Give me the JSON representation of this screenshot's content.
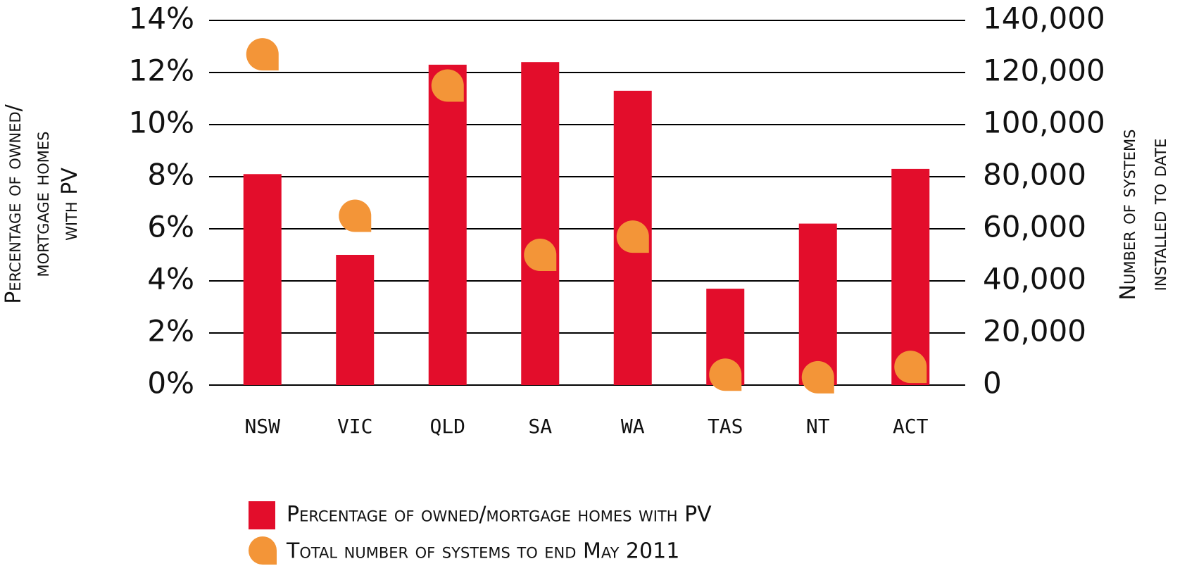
{
  "chart_data": {
    "type": "bar",
    "categories": [
      "NSW",
      "VIC",
      "QLD",
      "SA",
      "WA",
      "TAS",
      "NT",
      "ACT"
    ],
    "ylabel": [
      "Percentage of owned/",
      "mortgage homes",
      "with PV"
    ],
    "y2label": [
      "Number of systems",
      "installed to date"
    ],
    "ylim": [
      0,
      14
    ],
    "yticks": [
      {
        "value": 0,
        "label": "0%"
      },
      {
        "value": 2,
        "label": "2%"
      },
      {
        "value": 4,
        "label": "4%"
      },
      {
        "value": 6,
        "label": "6%"
      },
      {
        "value": 8,
        "label": "8%"
      },
      {
        "value": 10,
        "label": "10%"
      },
      {
        "value": 12,
        "label": "12%"
      },
      {
        "value": 14,
        "label": "14%"
      }
    ],
    "y2lim": [
      0,
      140000
    ],
    "y2ticks": [
      0,
      {
        "value": 20000,
        "label": "20,000"
      },
      {
        "value": 40000,
        "label": "40,000"
      },
      {
        "value": 60000,
        "label": "60,000"
      },
      {
        "value": 80000,
        "label": "80,000"
      },
      {
        "value": 100000,
        "label": "100,000"
      },
      {
        "value": 120000,
        "label": "120,000"
      },
      {
        "value": 140000,
        "label": "140,000"
      }
    ],
    "grid": true,
    "series": [
      {
        "name": "Percentage of owned/mortgage homes with PV",
        "type": "bar",
        "color": "#e30d2b",
        "values": [
          8.1,
          5.0,
          12.3,
          12.4,
          11.3,
          3.7,
          6.2,
          8.3
        ]
      },
      {
        "name": "Total number of systems to end May 2011",
        "type": "marker",
        "axis": "y2",
        "color": "#f39538",
        "values": [
          127000,
          65000,
          115000,
          50000,
          57000,
          4000,
          3000,
          7000
        ]
      }
    ]
  }
}
